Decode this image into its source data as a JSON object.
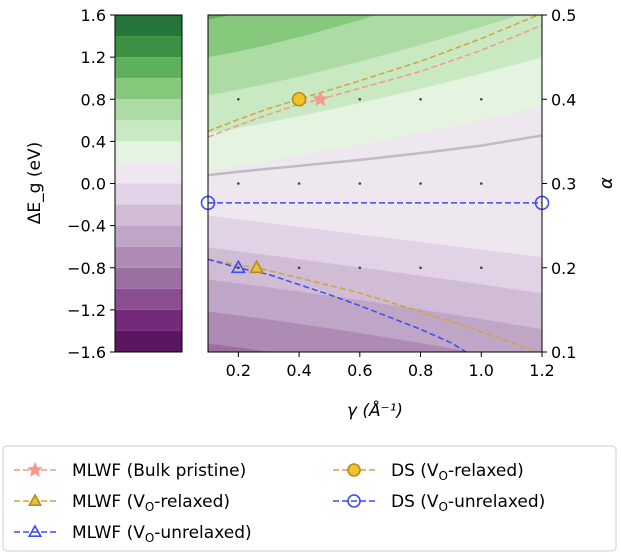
{
  "chart_data": [
    {
      "type": "heatmap",
      "role": "colorbar",
      "ylabel": "ΔE_g (eV)",
      "ylim": [
        -1.6,
        1.6
      ],
      "yticks": [
        "1.6",
        "1.2",
        "0.8",
        "0.4",
        "0.0",
        "−0.4",
        "−0.8",
        "−1.2",
        "−1.6"
      ],
      "levels": [
        -1.6,
        -1.4,
        -1.2,
        -1.0,
        -0.8,
        -0.6,
        -0.4,
        -0.2,
        0.0,
        0.2,
        0.4,
        0.6,
        0.8,
        1.0,
        1.2,
        1.4,
        1.6
      ],
      "colors": [
        "#5a1760",
        "#74297a",
        "#8b4f91",
        "#9c6fa3",
        "#ad8bb4",
        "#c0a6c6",
        "#d1bcd6",
        "#e1d3e5",
        "#eee7f0",
        "#e5f3e1",
        "#c9e9c2",
        "#acdca3",
        "#86c97d",
        "#5fb05a",
        "#3d9142",
        "#23753a",
        "#0f5d2c"
      ]
    },
    {
      "type": "heatmap",
      "role": "contour",
      "xlabel": "γ (Å⁻¹)",
      "ylabel": "α",
      "xlim": [
        0.1,
        1.2
      ],
      "ylim": [
        0.1,
        0.5
      ],
      "xticks": [
        "0.2",
        "0.4",
        "0.6",
        "0.8",
        "1.0",
        "1.2"
      ],
      "yticks": [
        "0.5",
        "0.4",
        "0.3",
        "0.2",
        "0.1"
      ],
      "grid_points": {
        "x": [
          0.2,
          0.4,
          0.6,
          0.8,
          1.0
        ],
        "y": [
          0.2,
          0.3,
          0.4
        ]
      },
      "series": [
        {
          "name": "MLWF (Bulk pristine)",
          "color": "#f4978e",
          "marker": "star",
          "linestyle": "dashed",
          "x": [
            0.1,
            0.2,
            0.3,
            0.4,
            0.47,
            0.6,
            0.8,
            1.0,
            1.2
          ],
          "y": [
            0.355,
            0.369,
            0.382,
            0.394,
            0.4,
            0.413,
            0.433,
            0.458,
            0.488
          ],
          "marker_point": [
            0.47,
            0.4
          ]
        },
        {
          "name": "DS (V_O-relaxed)",
          "color": "#d4a23a",
          "marker": "circle",
          "linestyle": "dashed",
          "x": [
            0.1,
            0.2,
            0.3,
            0.4,
            0.5,
            0.6,
            0.8,
            1.0,
            1.2
          ],
          "y": [
            0.362,
            0.376,
            0.389,
            0.4,
            0.411,
            0.422,
            0.445,
            0.472,
            0.502
          ],
          "marker_point": [
            0.4,
            0.4
          ]
        },
        {
          "name": "MLWF (V_O-relaxed)",
          "color": "#d4a23a",
          "marker": "triangle",
          "linestyle": "dashed",
          "x": [
            0.1,
            0.2,
            0.26,
            0.4,
            0.6,
            0.8,
            1.0,
            1.2
          ],
          "y": [
            0.21,
            0.203,
            0.2,
            0.188,
            0.17,
            0.148,
            0.124,
            0.098
          ],
          "marker_point": [
            0.26,
            0.2
          ]
        },
        {
          "name": "DS (V_O-unrelaxed)",
          "color": "#3b4cf0",
          "marker": "circle",
          "linestyle": "dashed",
          "x": [
            0.1,
            1.2
          ],
          "y": [
            0.277,
            0.277
          ],
          "marker_point": [
            0.1,
            0.277
          ],
          "marker_point_2": [
            1.2,
            0.277
          ]
        },
        {
          "name": "MLWF (V_O-unrelaxed)",
          "color": "#3b4cf0",
          "marker": "triangle",
          "linestyle": "dashed",
          "x": [
            0.1,
            0.2,
            0.3,
            0.4,
            0.5,
            0.6,
            0.7,
            0.8,
            0.9,
            0.95
          ],
          "y": [
            0.21,
            0.2,
            0.192,
            0.18,
            0.168,
            0.155,
            0.141,
            0.127,
            0.111,
            0.1
          ],
          "marker_point": [
            0.2,
            0.2
          ]
        }
      ],
      "zero_contour": {
        "color": "#bdbdbd",
        "x": [
          0.1,
          0.2,
          0.4,
          0.6,
          0.8,
          1.0,
          1.2
        ],
        "y": [
          0.31,
          0.314,
          0.321,
          0.328,
          0.336,
          0.345,
          0.357
        ]
      }
    }
  ],
  "legend": {
    "placement": "bottom",
    "entries": [
      {
        "label": "MLWF (Bulk pristine)",
        "series": 0
      },
      {
        "label": "DS (V_O-relaxed)",
        "series": 1
      },
      {
        "label": "MLWF (V_O-relaxed)",
        "series": 2
      },
      {
        "label": "DS (V_O-unrelaxed)",
        "series": 3
      },
      {
        "label": "MLWF (V_O-unrelaxed)",
        "series": 4
      }
    ]
  }
}
